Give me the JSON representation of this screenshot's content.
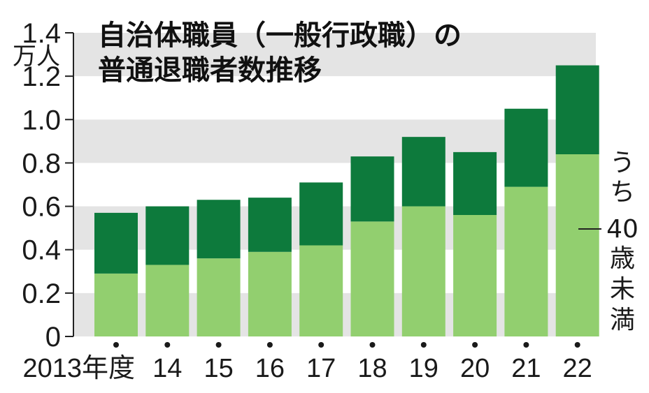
{
  "chart_data": {
    "type": "bar",
    "stacked": true,
    "title_lines": [
      "自治体職員（一般行政職）の",
      "普通退職者数推移"
    ],
    "unit": "万人",
    "categories": [
      "2013年度",
      "14",
      "15",
      "16",
      "17",
      "18",
      "19",
      "20",
      "21",
      "22"
    ],
    "series": [
      {
        "name": "うち40歳未満",
        "color": "#92cf6f",
        "values": [
          0.29,
          0.33,
          0.36,
          0.39,
          0.42,
          0.53,
          0.6,
          0.56,
          0.69,
          0.84
        ]
      },
      {
        "name": "",
        "color": "#0d7a3c",
        "values": [
          0.28,
          0.27,
          0.27,
          0.25,
          0.29,
          0.3,
          0.32,
          0.29,
          0.36,
          0.41
        ]
      }
    ],
    "yticks": [
      "0",
      "0.2",
      "0.4",
      "0.6",
      "0.8",
      "1.0",
      "1.2",
      "1.4"
    ],
    "ylim": [
      0,
      1.4
    ],
    "legend_vertical_chars": [
      "う",
      "ち",
      "40",
      "歳",
      "未",
      "満"
    ],
    "colors": {
      "band_gray": "#e4e4e4",
      "axis": "#222222"
    }
  }
}
